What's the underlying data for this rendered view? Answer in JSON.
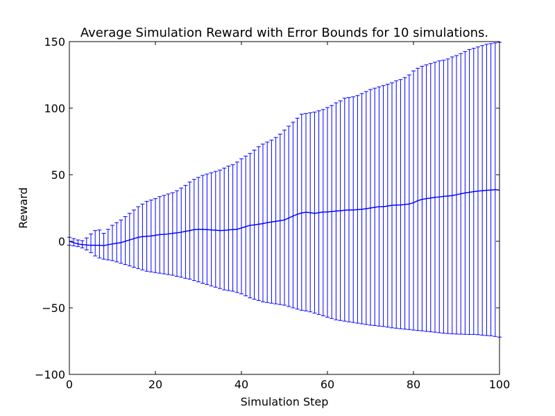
{
  "chart_data": {
    "type": "line",
    "title": "Average Simulation Reward with Error Bounds for 10 simulations.",
    "xlabel": "Simulation Step",
    "ylabel": "Reward",
    "xlim": [
      0,
      100
    ],
    "ylim": [
      -100,
      150
    ],
    "xticks": [
      0,
      20,
      40,
      60,
      80,
      100
    ],
    "xtick_labels": [
      "0",
      "20",
      "40",
      "60",
      "80",
      "100"
    ],
    "yticks": [
      -100,
      -50,
      0,
      50,
      100,
      150
    ],
    "ytick_labels": [
      "−100",
      "−50",
      "0",
      "50",
      "100",
      "150"
    ],
    "grid": false,
    "legend": "none",
    "line_color": "#0000ff",
    "series": [
      {
        "x": [
          0,
          1,
          2,
          3,
          4,
          5,
          6,
          7,
          8,
          9,
          10,
          11,
          12,
          13,
          14,
          15,
          16,
          17,
          18,
          19,
          20,
          21,
          22,
          23,
          24,
          25,
          26,
          27,
          28,
          29,
          30,
          31,
          32,
          33,
          34,
          35,
          36,
          37,
          38,
          39,
          40,
          41,
          42,
          43,
          44,
          45,
          46,
          47,
          48,
          49,
          50,
          51,
          52,
          53,
          54,
          55,
          56,
          57,
          58,
          59,
          60,
          61,
          62,
          63,
          64,
          65,
          66,
          67,
          68,
          69,
          70,
          71,
          72,
          73,
          74,
          75,
          76,
          77,
          78,
          79,
          80,
          81,
          82,
          83,
          84,
          85,
          86,
          87,
          88,
          89,
          90,
          91,
          92,
          93,
          94,
          95,
          96,
          97,
          98,
          99,
          100
        ],
        "y": [
          0.0,
          -1.0,
          -2.0,
          -2.5,
          -2.8,
          -3.0,
          -3.0,
          -3.0,
          -3.3,
          -2.5,
          -2.0,
          -1.5,
          -1.0,
          0.0,
          1.0,
          2.0,
          3.0,
          3.5,
          3.8,
          4.0,
          4.5,
          5.0,
          5.2,
          5.5,
          6.0,
          6.3,
          6.8,
          7.5,
          8.0,
          8.8,
          9.0,
          9.0,
          8.8,
          8.5,
          8.3,
          8.0,
          8.2,
          8.5,
          8.8,
          9.0,
          10.0,
          11.0,
          12.0,
          12.3,
          12.8,
          13.3,
          14.0,
          14.5,
          15.0,
          15.5,
          16.0,
          17.5,
          19.0,
          20.3,
          21.3,
          21.8,
          21.5,
          21.0,
          21.5,
          22.0,
          22.0,
          22.3,
          22.7,
          23.0,
          23.3,
          23.5,
          23.5,
          23.8,
          24.0,
          24.5,
          25.0,
          25.5,
          26.0,
          26.0,
          26.5,
          27.0,
          27.2,
          27.3,
          27.7,
          28.0,
          29.0,
          30.5,
          31.5,
          32.0,
          32.5,
          33.0,
          33.3,
          33.7,
          34.0,
          34.3,
          35.0,
          35.7,
          36.3,
          36.8,
          37.3,
          37.7,
          38.0,
          38.3,
          38.5,
          38.8,
          38.5
        ],
        "lower": [
          -3.0,
          -3.5,
          -4.0,
          -5.0,
          -6.5,
          -8.5,
          -11.0,
          -12.5,
          -13.5,
          -14.0,
          -14.5,
          -15.5,
          -16.5,
          -17.5,
          -18.5,
          -19.5,
          -20.5,
          -21.5,
          -22.5,
          -23.0,
          -23.5,
          -24.0,
          -24.5,
          -25.0,
          -25.5,
          -26.3,
          -27.0,
          -27.8,
          -28.5,
          -29.5,
          -30.5,
          -31.5,
          -32.5,
          -33.5,
          -34.5,
          -35.5,
          -36.5,
          -37.0,
          -37.5,
          -38.5,
          -39.5,
          -41.0,
          -42.5,
          -43.5,
          -44.5,
          -45.5,
          -46.0,
          -46.5,
          -47.0,
          -47.5,
          -48.0,
          -49.0,
          -50.0,
          -51.0,
          -51.8,
          -52.3,
          -53.0,
          -54.0,
          -55.0,
          -56.0,
          -57.0,
          -58.0,
          -59.0,
          -59.5,
          -60.0,
          -60.5,
          -61.0,
          -61.5,
          -62.0,
          -62.5,
          -63.0,
          -63.3,
          -63.7,
          -64.0,
          -64.5,
          -65.0,
          -65.3,
          -65.7,
          -66.0,
          -66.3,
          -66.7,
          -67.0,
          -67.3,
          -67.7,
          -68.0,
          -68.3,
          -68.7,
          -69.0,
          -69.3,
          -69.5,
          -69.7,
          -69.8,
          -69.9,
          -70.0,
          -70.0,
          -70.2,
          -70.5,
          -70.8,
          -71.0,
          -71.5,
          -72.0
        ],
        "upper": [
          3.0,
          2.0,
          1.0,
          0.5,
          2.5,
          5.5,
          8.0,
          8.5,
          6.0,
          9.0,
          12.0,
          14.0,
          16.0,
          18.5,
          21.0,
          23.5,
          26.0,
          28.0,
          30.0,
          31.0,
          32.0,
          33.5,
          34.5,
          35.5,
          36.5,
          38.0,
          40.0,
          42.0,
          44.5,
          46.5,
          48.0,
          49.5,
          50.5,
          51.5,
          52.5,
          53.5,
          55.0,
          56.5,
          57.5,
          59.5,
          62.0,
          64.0,
          66.0,
          68.5,
          71.0,
          73.0,
          74.5,
          76.0,
          78.0,
          80.5,
          83.5,
          86.5,
          89.5,
          92.5,
          95.5,
          96.0,
          96.5,
          97.0,
          98.0,
          99.0,
          100.5,
          102.0,
          104.0,
          105.5,
          107.5,
          108.0,
          108.5,
          109.5,
          111.0,
          112.5,
          114.0,
          115.0,
          116.0,
          117.0,
          118.0,
          119.0,
          120.5,
          121.5,
          123.0,
          125.0,
          128.0,
          130.0,
          131.5,
          132.5,
          133.5,
          134.5,
          135.5,
          136.0,
          137.0,
          138.5,
          139.5,
          141.0,
          142.5,
          144.0,
          145.0,
          146.0,
          147.0,
          148.0,
          148.5,
          149.0,
          149.5
        ]
      }
    ]
  }
}
